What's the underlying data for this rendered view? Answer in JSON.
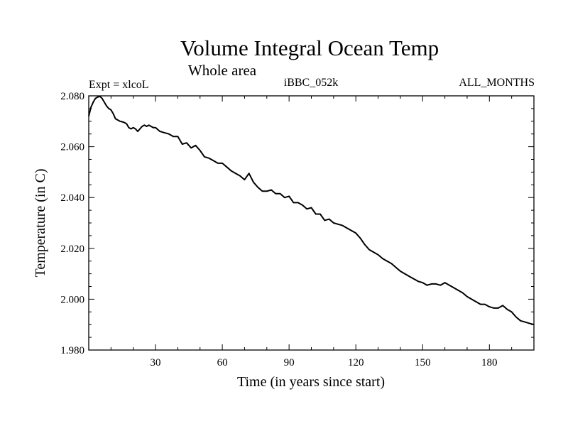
{
  "chart_data": {
    "type": "line",
    "title": "Volume Integral Ocean Temp",
    "subtitle": "Whole area",
    "left_label": "Expt = xlcoL",
    "center_label": "iBBC_052k",
    "right_label": "ALL_MONTHS",
    "xlabel": "Time (in years since start)",
    "ylabel": "Temperature (in C)",
    "xlim": [
      0,
      200
    ],
    "ylim": [
      1.98,
      2.08
    ],
    "xticks": [
      30,
      60,
      90,
      120,
      150,
      180
    ],
    "xtick_labels": [
      "30",
      "60",
      "90",
      "120",
      "150",
      "180"
    ],
    "yticks": [
      1.98,
      2.0,
      2.02,
      2.04,
      2.06,
      2.08
    ],
    "ytick_labels": [
      "1.980",
      "2.000",
      "2.020",
      "2.040",
      "2.060",
      "2.080"
    ],
    "series": [
      {
        "name": "Volume Integral Ocean Temp",
        "x": [
          0,
          1,
          2,
          3,
          4,
          5,
          6,
          7,
          8,
          9,
          10,
          11,
          12,
          13,
          14,
          15,
          16,
          17,
          18,
          19,
          20,
          21,
          22,
          23,
          24,
          25,
          26,
          27,
          28,
          29,
          30,
          32,
          34,
          36,
          38,
          40,
          42,
          44,
          46,
          48,
          50,
          52,
          54,
          56,
          58,
          60,
          62,
          64,
          66,
          68,
          70,
          72,
          74,
          76,
          78,
          80,
          82,
          84,
          86,
          88,
          90,
          92,
          94,
          96,
          98,
          100,
          102,
          104,
          106,
          108,
          110,
          112,
          114,
          116,
          118,
          120,
          122,
          124,
          126,
          128,
          130,
          132,
          134,
          136,
          138,
          140,
          142,
          144,
          146,
          148,
          150,
          152,
          154,
          156,
          158,
          160,
          162,
          164,
          166,
          168,
          170,
          172,
          174,
          176,
          178,
          180,
          182,
          184,
          186,
          188,
          190,
          192,
          194,
          196,
          198,
          200
        ],
        "y": [
          2.072,
          2.0755,
          2.0775,
          2.079,
          2.0795,
          2.0798,
          2.079,
          2.0775,
          2.076,
          2.075,
          2.0745,
          2.073,
          2.071,
          2.0705,
          2.07,
          2.0698,
          2.0695,
          2.069,
          2.0675,
          2.067,
          2.0675,
          2.067,
          2.066,
          2.067,
          2.068,
          2.0685,
          2.068,
          2.0685,
          2.068,
          2.0675,
          2.0675,
          2.066,
          2.0655,
          2.065,
          2.064,
          2.064,
          2.061,
          2.0615,
          2.0595,
          2.0605,
          2.0585,
          2.056,
          2.0555,
          2.0545,
          2.0535,
          2.0535,
          2.052,
          2.0505,
          2.0495,
          2.0485,
          2.047,
          2.0495,
          2.046,
          2.044,
          2.0425,
          2.0425,
          2.043,
          2.0415,
          2.0415,
          2.04,
          2.0405,
          2.038,
          2.038,
          2.037,
          2.0355,
          2.036,
          2.0335,
          2.0335,
          2.031,
          2.0315,
          2.03,
          2.0295,
          2.029,
          2.028,
          2.027,
          2.026,
          2.024,
          2.0215,
          2.0195,
          2.0185,
          2.0175,
          2.016,
          2.015,
          2.014,
          2.0125,
          2.011,
          2.01,
          2.009,
          2.008,
          2.007,
          2.0065,
          2.0055,
          2.006,
          2.006,
          2.0055,
          2.0065,
          2.0055,
          2.0045,
          2.0035,
          2.0025,
          2.001,
          2.0,
          1.999,
          1.998,
          1.998,
          1.997,
          1.9965,
          1.9965,
          1.9975,
          1.996,
          1.995,
          1.993,
          1.9915,
          1.991,
          1.9905,
          1.99
        ]
      }
    ]
  }
}
